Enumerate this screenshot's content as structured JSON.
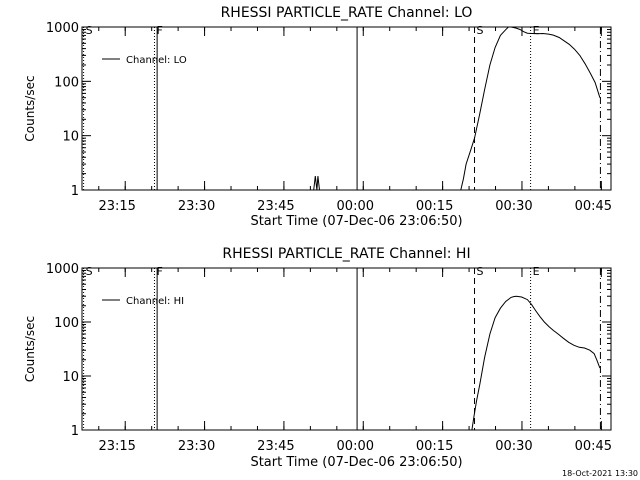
{
  "chart_data": [
    {
      "type": "line",
      "title": "RHESSI PARTICLE_RATE Channel: LO",
      "xlabel": "Start Time (07-Dec-06 23:06:50)",
      "ylabel": "Counts/sec",
      "y_scale": "log",
      "ylim": [
        1,
        1000
      ],
      "y_tick_labels": [
        "1",
        "10",
        "100",
        "1000"
      ],
      "x_unit": "minutes from start time",
      "xlim": [
        0,
        100
      ],
      "x_ticks": [
        {
          "x": 8.17,
          "label": "23:15"
        },
        {
          "x": 23.17,
          "label": "23:30"
        },
        {
          "x": 38.17,
          "label": "23:45"
        },
        {
          "x": 53.17,
          "label": "00:00"
        },
        {
          "x": 68.17,
          "label": "00:15"
        },
        {
          "x": 83.17,
          "label": "00:30"
        },
        {
          "x": 98.17,
          "label": "00:45"
        }
      ],
      "legend": {
        "label": "Channel: LO",
        "position": "top-left"
      },
      "markers": [
        {
          "x": 0.3,
          "label": "S",
          "style": "dotted"
        },
        {
          "x": 13.7,
          "label": "F",
          "style": "dotted"
        },
        {
          "x": 14.2,
          "label": "",
          "style": "solid"
        },
        {
          "x": 52.0,
          "label": "",
          "style": "solid"
        },
        {
          "x": 74.2,
          "label": "S",
          "style": "dashed"
        },
        {
          "x": 84.8,
          "label": "E",
          "style": "dotted"
        },
        {
          "x": 98.0,
          "label": "",
          "style": "dashdot"
        }
      ],
      "series": [
        {
          "name": "Channel: LO",
          "points": [
            [
              43.8,
              1
            ],
            [
              44.1,
              1.8
            ],
            [
              44.4,
              1
            ],
            [
              44.6,
              1.8
            ],
            [
              44.9,
              1
            ]
          ]
        },
        {
          "name": "Channel: LO",
          "points": [
            [
              71.6,
              1
            ],
            [
              72.1,
              1.6
            ],
            [
              72.6,
              3
            ],
            [
              73.5,
              5.5
            ],
            [
              74.2,
              9
            ],
            [
              75.1,
              23
            ],
            [
              76.1,
              70
            ],
            [
              77.1,
              200
            ],
            [
              78.1,
              420
            ],
            [
              79.1,
              700
            ],
            [
              80.1,
              890
            ],
            [
              80.6,
              1000
            ],
            [
              81.1,
              1000
            ],
            [
              82.0,
              960
            ],
            [
              82.8,
              900
            ],
            [
              83.5,
              820
            ],
            [
              84.2,
              770
            ],
            [
              85.1,
              760
            ],
            [
              86.1,
              750
            ],
            [
              87.1,
              760
            ],
            [
              88.2,
              740
            ],
            [
              89.1,
              710
            ],
            [
              90.2,
              640
            ],
            [
              91.1,
              560
            ],
            [
              92.1,
              480
            ],
            [
              93.1,
              390
            ],
            [
              94.1,
              300
            ],
            [
              95.1,
              210
            ],
            [
              96.1,
              140
            ],
            [
              97.0,
              95
            ],
            [
              97.9,
              50
            ]
          ]
        }
      ]
    },
    {
      "type": "line",
      "title": "RHESSI PARTICLE_RATE Channel: HI",
      "xlabel": "Start Time (07-Dec-06 23:06:50)",
      "ylabel": "Counts/sec",
      "y_scale": "log",
      "ylim": [
        1,
        1000
      ],
      "y_tick_labels": [
        "1",
        "10",
        "100",
        "1000"
      ],
      "x_unit": "minutes from start time",
      "xlim": [
        0,
        100
      ],
      "x_ticks": [
        {
          "x": 8.17,
          "label": "23:15"
        },
        {
          "x": 23.17,
          "label": "23:30"
        },
        {
          "x": 38.17,
          "label": "23:45"
        },
        {
          "x": 53.17,
          "label": "00:00"
        },
        {
          "x": 68.17,
          "label": "00:15"
        },
        {
          "x": 83.17,
          "label": "00:30"
        },
        {
          "x": 98.17,
          "label": "00:45"
        }
      ],
      "legend": {
        "label": "Channel: HI",
        "position": "top-left"
      },
      "markers": [
        {
          "x": 0.3,
          "label": "S",
          "style": "dotted"
        },
        {
          "x": 13.7,
          "label": "F",
          "style": "dotted"
        },
        {
          "x": 14.2,
          "label": "",
          "style": "solid"
        },
        {
          "x": 52.0,
          "label": "",
          "style": "solid"
        },
        {
          "x": 74.2,
          "label": "S",
          "style": "dashed"
        },
        {
          "x": 84.8,
          "label": "E",
          "style": "dotted"
        },
        {
          "x": 98.0,
          "label": "",
          "style": "dashdot"
        }
      ],
      "series": [
        {
          "name": "Channel: HI",
          "points": [
            [
              73.7,
              1
            ],
            [
              74.1,
              1.8
            ],
            [
              74.6,
              3.5
            ],
            [
              75.2,
              7
            ],
            [
              76.1,
              22
            ],
            [
              77.1,
              60
            ],
            [
              78.1,
              120
            ],
            [
              79.1,
              180
            ],
            [
              80.1,
              240
            ],
            [
              81.1,
              285
            ],
            [
              81.6,
              295
            ],
            [
              82.1,
              300
            ],
            [
              83.1,
              290
            ],
            [
              84.2,
              260
            ],
            [
              85.0,
              210
            ],
            [
              85.8,
              160
            ],
            [
              86.6,
              125
            ],
            [
              87.4,
              100
            ],
            [
              88.3,
              82
            ],
            [
              89.1,
              70
            ],
            [
              90.0,
              60
            ],
            [
              91.0,
              50
            ],
            [
              92.0,
              42
            ],
            [
              93.0,
              37
            ],
            [
              94.0,
              34
            ],
            [
              95.0,
              33
            ],
            [
              96.0,
              30
            ],
            [
              96.8,
              26
            ],
            [
              97.3,
              20
            ],
            [
              97.9,
              14
            ]
          ]
        }
      ]
    }
  ],
  "footer": {
    "timestamp": "18-Oct-2021 13:30"
  }
}
